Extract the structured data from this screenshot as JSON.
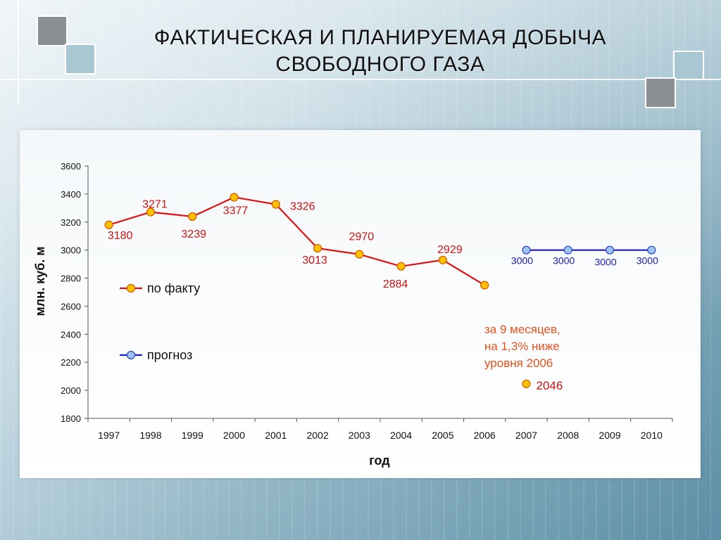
{
  "slide": {
    "title_line1": "ФАКТИЧЕСКАЯ И ПЛАНИРУЕМАЯ ДОБЫЧА",
    "title_line2": "СВОБОДНОГО ГАЗА"
  },
  "colors": {
    "actual": "#e01010",
    "forecast": "#1a1acc",
    "marker_actual_fill": "#ffc000",
    "marker_forecast_fill": "#9ec3f0",
    "annotation": "#e8501c",
    "label_actual": "#cc1111",
    "label_forecast": "#1a1aaa"
  },
  "chart_data": {
    "type": "line",
    "title": "",
    "xlabel": "год",
    "ylabel": "млн. куб. м",
    "ylim": [
      1800,
      3600
    ],
    "y_ticks": [
      "1800",
      "2000",
      "2200",
      "2400",
      "2600",
      "2800",
      "3000",
      "3200",
      "3400",
      "3600"
    ],
    "categories": [
      "1997",
      "1998",
      "1999",
      "2000",
      "2001",
      "2002",
      "2003",
      "2004",
      "2005",
      "2006",
      "2007",
      "2008",
      "2009",
      "2010"
    ],
    "series": [
      {
        "name": "по факту",
        "color": "#e01010",
        "points": [
          {
            "x": "1997",
            "y": 3180,
            "label": "3180"
          },
          {
            "x": "1998",
            "y": 3271,
            "label": "3271"
          },
          {
            "x": "1999",
            "y": 3239,
            "label": "3239"
          },
          {
            "x": "2000",
            "y": 3377,
            "label": "3377"
          },
          {
            "x": "2001",
            "y": 3326,
            "label": "3326"
          },
          {
            "x": "2002",
            "y": 3013,
            "label": "3013"
          },
          {
            "x": "2003",
            "y": 2970,
            "label": "2970"
          },
          {
            "x": "2004",
            "y": 2884,
            "label": "2884"
          },
          {
            "x": "2005",
            "y": 2929,
            "label": "2929"
          },
          {
            "x": "2006",
            "y": 2750,
            "label": ""
          }
        ]
      },
      {
        "name": "прогноз",
        "color": "#1a1acc",
        "points": [
          {
            "x": "2007",
            "y": 3000,
            "label": "3000"
          },
          {
            "x": "2008",
            "y": 3000,
            "label": "3000"
          },
          {
            "x": "2009",
            "y": 3000,
            "label": "3000"
          },
          {
            "x": "2010",
            "y": 3000,
            "label": "3000"
          }
        ]
      }
    ],
    "extra_point": {
      "x": "2007",
      "y": 2046,
      "label": "2046"
    },
    "annotation": [
      "за 9 месяцев,",
      "на 1,3% ниже",
      "уровня 2006"
    ],
    "legend": [
      {
        "name": "по факту"
      },
      {
        "name": "прогноз"
      }
    ],
    "grid": false,
    "legend_placement": "left inside plot"
  }
}
